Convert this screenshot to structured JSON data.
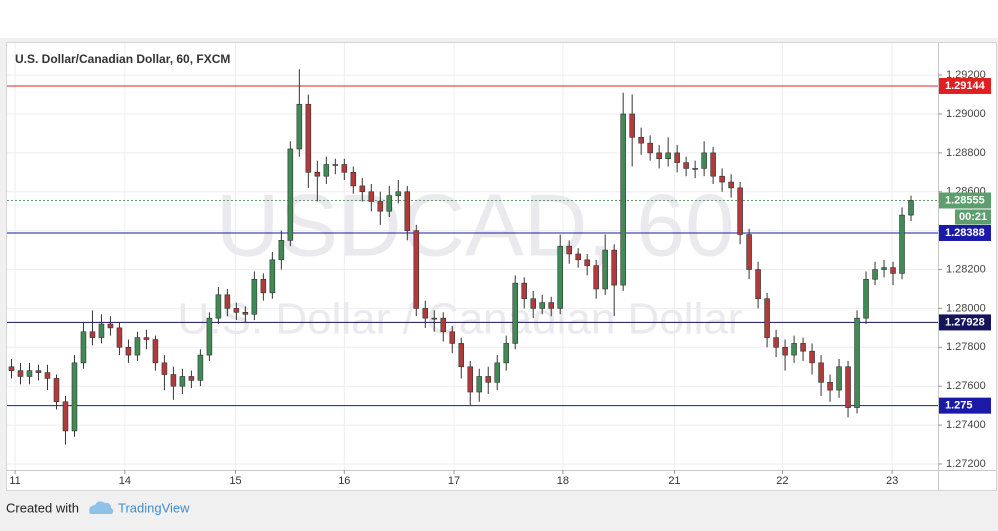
{
  "chart_data": {
    "type": "candlestick",
    "title": "U.S. Dollar/Canadian Dollar, 60, FXCM",
    "watermark": {
      "symbol": "USDCAD, 60",
      "description": "U.S. Dollar / Canadian Dollar"
    },
    "up_color": "#3f8a55",
    "down_color": "#b13a3a",
    "grid": true,
    "xlim": [
      -0.5,
      103
    ],
    "ylim": [
      1.27169,
      1.29365
    ],
    "xticks": [
      {
        "value": 0.4,
        "label": "11"
      },
      {
        "value": 12.6,
        "label": "14"
      },
      {
        "value": 24.9,
        "label": "15"
      },
      {
        "value": 37,
        "label": "16"
      },
      {
        "value": 49.2,
        "label": "17"
      },
      {
        "value": 61.3,
        "label": "18"
      },
      {
        "value": 73.7,
        "label": "21"
      },
      {
        "value": 85.7,
        "label": "22"
      },
      {
        "value": 97.9,
        "label": "23"
      }
    ],
    "yticks": [
      {
        "value": 1.272,
        "label": "1.27200"
      },
      {
        "value": 1.274,
        "label": "1.27400"
      },
      {
        "value": 1.276,
        "label": "1.27600"
      },
      {
        "value": 1.278,
        "label": "1.27800"
      },
      {
        "value": 1.28,
        "label": "1.28000"
      },
      {
        "value": 1.282,
        "label": "1.28200"
      },
      {
        "value": 1.284,
        "label": "1.28400"
      },
      {
        "value": 1.286,
        "label": "1.28600"
      },
      {
        "value": 1.288,
        "label": "1.28800"
      },
      {
        "value": 1.29,
        "label": "1.29000"
      },
      {
        "value": 1.292,
        "label": "1.29200"
      }
    ],
    "levels": [
      {
        "value": 1.29144,
        "color": "#e02020"
      },
      {
        "value": 1.28388,
        "color": "#1a1aa6"
      },
      {
        "value": 1.27928,
        "color": "#13135e"
      },
      {
        "value": 1.275,
        "color": "#1a1aa6"
      }
    ],
    "last_price": {
      "value": 1.28555,
      "countdown": "00:21",
      "color": "#5c9e6e"
    },
    "open": [
      1.277,
      1.2768,
      1.2765,
      1.2768,
      1.2767,
      1.2764,
      1.2752,
      1.2737,
      1.2772,
      1.2788,
      1.2785,
      1.2792,
      1.279,
      1.278,
      1.2776,
      1.2785,
      1.2784,
      1.2772,
      1.2766,
      1.276,
      1.2765,
      1.2763,
      1.2776,
      1.2795,
      1.2807,
      1.28,
      1.2798,
      1.2797,
      1.2815,
      1.2808,
      1.2825,
      1.2835,
      1.2882,
      1.2905,
      1.287,
      1.2868,
      1.2874,
      1.2874,
      1.287,
      1.2863,
      1.286,
      1.2855,
      1.285,
      1.2858,
      1.286,
      1.284,
      1.28,
      1.2795,
      1.2795,
      1.2788,
      1.2782,
      1.277,
      1.2757,
      1.2765,
      1.2762,
      1.2772,
      1.2782,
      1.2813,
      1.2805,
      1.28,
      1.2803,
      1.28,
      1.2832,
      1.2828,
      1.2825,
      1.2822,
      1.281,
      1.283,
      1.2812,
      1.29,
      1.2888,
      1.2885,
      1.288,
      1.2877,
      1.288,
      1.2875,
      1.2872,
      1.2872,
      1.288,
      1.2868,
      1.2865,
      1.2862,
      1.2838,
      1.282,
      1.2805,
      1.2785,
      1.278,
      1.2776,
      1.2782,
      1.2778,
      1.2772,
      1.2762,
      1.2758,
      1.277,
      1.2749,
      1.2795,
      1.2815,
      1.282,
      1.2821,
      1.2818,
      1.2848
    ],
    "high": [
      1.2774,
      1.2772,
      1.2772,
      1.2771,
      1.2771,
      1.2766,
      1.2755,
      1.2776,
      1.2793,
      1.2799,
      1.2797,
      1.2796,
      1.2793,
      1.2784,
      1.2788,
      1.2789,
      1.2786,
      1.2776,
      1.277,
      1.2769,
      1.2768,
      1.2779,
      1.2798,
      1.2811,
      1.281,
      1.2803,
      1.2801,
      1.2819,
      1.2818,
      1.2829,
      1.284,
      1.2886,
      1.2923,
      1.291,
      1.2876,
      1.2878,
      1.2877,
      1.2877,
      1.2873,
      1.2867,
      1.2864,
      1.286,
      1.2863,
      1.2866,
      1.2863,
      1.2843,
      1.2804,
      1.2799,
      1.2798,
      1.2791,
      1.2785,
      1.2773,
      1.2769,
      1.277,
      1.2776,
      1.2786,
      1.2817,
      1.2816,
      1.2809,
      1.2807,
      1.2806,
      1.2838,
      1.2835,
      1.2831,
      1.2828,
      1.2825,
      1.2838,
      1.2833,
      1.2911,
      1.291,
      1.2893,
      1.2889,
      1.2884,
      1.2888,
      1.2884,
      1.2878,
      1.2876,
      1.2886,
      1.2883,
      1.2872,
      1.2869,
      1.2865,
      1.2841,
      1.2824,
      1.2808,
      1.2789,
      1.2784,
      1.2786,
      1.2785,
      1.2782,
      1.2776,
      1.2766,
      1.2774,
      1.2773,
      1.2799,
      1.2819,
      1.2824,
      1.2825,
      1.2824,
      1.2852,
      1.2858
    ],
    "low": [
      1.2764,
      1.2761,
      1.2761,
      1.2763,
      1.2758,
      1.2748,
      1.273,
      1.2734,
      1.2769,
      1.2781,
      1.2782,
      1.2786,
      1.2776,
      1.2772,
      1.2773,
      1.2779,
      1.2768,
      1.2758,
      1.2753,
      1.2756,
      1.2759,
      1.276,
      1.2773,
      1.2792,
      1.2796,
      1.2794,
      1.2793,
      1.2794,
      1.2804,
      1.2805,
      1.282,
      1.2832,
      1.2878,
      1.2862,
      1.2855,
      1.2864,
      1.2869,
      1.2866,
      1.2859,
      1.2855,
      1.285,
      1.2843,
      1.2847,
      1.2854,
      1.2835,
      1.2796,
      1.279,
      1.2788,
      1.2783,
      1.2777,
      1.2764,
      1.275,
      1.2752,
      1.2756,
      1.2758,
      1.2768,
      1.2779,
      1.28,
      1.2795,
      1.2797,
      1.2796,
      1.2797,
      1.2823,
      1.2821,
      1.2817,
      1.2805,
      1.2807,
      1.2796,
      1.2809,
      1.2873,
      1.2879,
      1.2876,
      1.2872,
      1.2873,
      1.287,
      1.2868,
      1.2867,
      1.2868,
      1.2864,
      1.286,
      1.2857,
      1.2833,
      1.2815,
      1.28,
      1.278,
      1.2775,
      1.2768,
      1.2772,
      1.2773,
      1.2766,
      1.2755,
      1.2752,
      1.2754,
      1.2744,
      1.2746,
      1.2792,
      1.2812,
      1.2816,
      1.2812,
      1.2815,
      1.2845
    ],
    "close": [
      1.2768,
      1.2765,
      1.2768,
      1.2767,
      1.2764,
      1.2752,
      1.2737,
      1.2772,
      1.2788,
      1.2785,
      1.2792,
      1.279,
      1.278,
      1.2776,
      1.2785,
      1.2784,
      1.2772,
      1.2766,
      1.276,
      1.2765,
      1.2763,
      1.2776,
      1.2795,
      1.2807,
      1.28,
      1.2798,
      1.2797,
      1.2815,
      1.2808,
      1.2825,
      1.2835,
      1.2882,
      1.2905,
      1.287,
      1.2868,
      1.2874,
      1.2874,
      1.287,
      1.2863,
      1.286,
      1.2855,
      1.285,
      1.2858,
      1.286,
      1.284,
      1.28,
      1.2795,
      1.2795,
      1.2788,
      1.2782,
      1.277,
      1.2757,
      1.2765,
      1.2762,
      1.2772,
      1.2782,
      1.2813,
      1.2805,
      1.28,
      1.2803,
      1.28,
      1.2832,
      1.2828,
      1.2825,
      1.2822,
      1.281,
      1.283,
      1.2812,
      1.29,
      1.2888,
      1.2885,
      1.288,
      1.2877,
      1.288,
      1.2875,
      1.2872,
      1.2872,
      1.288,
      1.2868,
      1.2865,
      1.2862,
      1.2838,
      1.282,
      1.2805,
      1.2785,
      1.278,
      1.2776,
      1.2782,
      1.2778,
      1.2772,
      1.2762,
      1.2758,
      1.277,
      1.2749,
      1.2795,
      1.2815,
      1.282,
      1.2821,
      1.2818,
      1.2848,
      1.28555
    ]
  },
  "footer": {
    "created": "Created with",
    "brand": "TradingView"
  }
}
